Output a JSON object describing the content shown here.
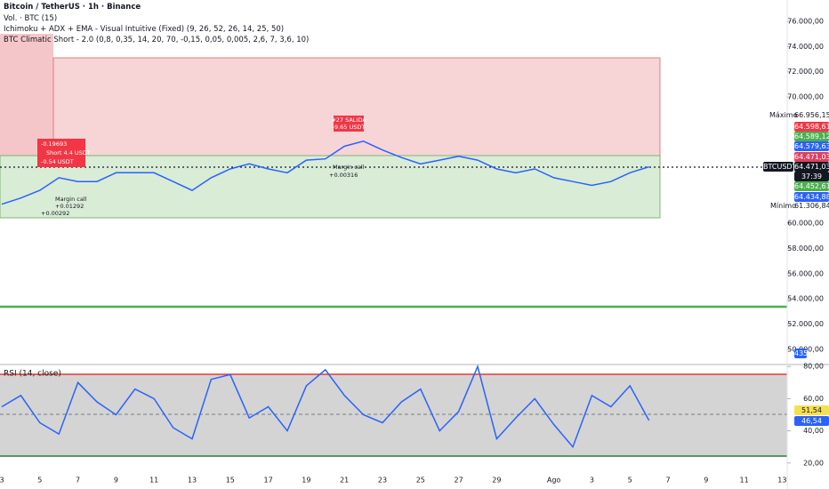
{
  "header": {
    "title": "Bitcoin / TetherUS · 1h · Binance",
    "indicators": [
      "Vol. · BTC (15)",
      "Ichimoku + ADX + EMA - Visual Intuitive (Fixed) (9, 26, 52, 26, 14, 25, 50)",
      "BTC Climatic Short - 2.0 (0,8, 0,35, 14, 20, 70, -0,15, 0,05, 0,005, 2,6, 7, 3,6, 10)"
    ]
  },
  "annotations": [
    "#27 SALIDA",
    "-9.65 USDT",
    "Margin call",
    "+0.00316",
    "Margin call",
    "+0.01292",
    "+0.00292",
    "-0.19693",
    "Short 4.4 USDT",
    "-0.54 USDT"
  ],
  "max_label": "Máximo",
  "max_value": "66.956,15",
  "min_label": "Mínimo",
  "min_value": "61.306,84",
  "price_tags": [
    {
      "text": "64.598,61",
      "color": "#f23645"
    },
    {
      "text": "64.589,12",
      "color": "#4caf50"
    },
    {
      "text": "64.579,63",
      "color": "#2962ff"
    },
    {
      "text": "64.471,03",
      "color": "#e0405e"
    },
    {
      "text": "64.452,61",
      "color": "#4caf50"
    },
    {
      "text": "64.434,88",
      "color": "#2962ff"
    }
  ],
  "symbol_tag": {
    "symbol": "BTCUSDT",
    "price": "64.471,03",
    "countdown": "37:39"
  },
  "volume_tag": "435",
  "rsi_tags": [
    {
      "text": "51,54",
      "color": "#f5e050"
    },
    {
      "text": "46,54",
      "color": "#2962ff"
    }
  ],
  "chart_data": [
    {
      "type": "line",
      "categories": [
        "3",
        null,
        "5",
        null,
        "7",
        null,
        "9",
        null,
        "11",
        null,
        "13",
        null,
        "15",
        null,
        "17",
        null,
        "19",
        null,
        "21",
        null,
        "23",
        null,
        "25",
        null,
        "27",
        null,
        "29",
        null,
        null,
        "Ago",
        null,
        "3",
        null,
        "5",
        null,
        "7",
        null,
        "9",
        null,
        "11",
        null,
        "13"
      ],
      "series": [
        {
          "name": "BTCUSDT",
          "color": "#2962ff",
          "values": [
            61500,
            62000,
            62600,
            63600,
            63300,
            63300,
            64000,
            64000,
            64000,
            63300,
            62600,
            63600,
            64300,
            64700,
            64300,
            64000,
            65000,
            65100,
            66100,
            66500,
            65800,
            65200,
            64700,
            65000,
            65300,
            65000,
            64300,
            64000,
            64300,
            63600,
            63300,
            63000,
            63300,
            64000,
            64471.03,
            null,
            null,
            null,
            null,
            null,
            null,
            null
          ]
        }
      ],
      "ylim": [
        49150,
        77690
      ],
      "yticks": [
        {
          "value": 76000,
          "label": "76.000,00"
        },
        {
          "value": 74000,
          "label": "74.000,00"
        },
        {
          "value": 72000,
          "label": "72.000,00"
        },
        {
          "value": 70000,
          "label": "70.000,00"
        },
        {
          "value": 60000,
          "label": "60.000,00"
        },
        {
          "value": 58000,
          "label": "58.000,00"
        },
        {
          "value": 56000,
          "label": "56.000,00"
        },
        {
          "value": 54000,
          "label": "54.000,00"
        },
        {
          "value": 52000,
          "label": "52.000,00"
        },
        {
          "value": 50000,
          "label": "50.000,00"
        }
      ]
    },
    {
      "type": "line",
      "title": "RSI (14, close)",
      "series": [
        {
          "color": "#2962ff",
          "values": [
            55,
            62,
            45,
            38,
            70,
            58,
            50,
            66,
            60,
            42,
            35,
            72,
            75,
            48,
            55,
            40,
            68,
            78,
            62,
            50,
            45,
            58,
            66,
            40,
            52,
            80,
            35,
            48,
            60,
            44,
            30,
            62,
            55,
            68,
            46.54,
            null,
            null,
            null,
            null,
            null,
            null,
            null
          ]
        }
      ],
      "ylim": [
        16,
        84
      ],
      "yticks": [
        {
          "value": 80,
          "label": "80,00"
        },
        {
          "value": 60,
          "label": "60,00"
        },
        {
          "value": 40,
          "label": "40,00"
        },
        {
          "value": 20,
          "label": "20,00"
        }
      ]
    }
  ]
}
